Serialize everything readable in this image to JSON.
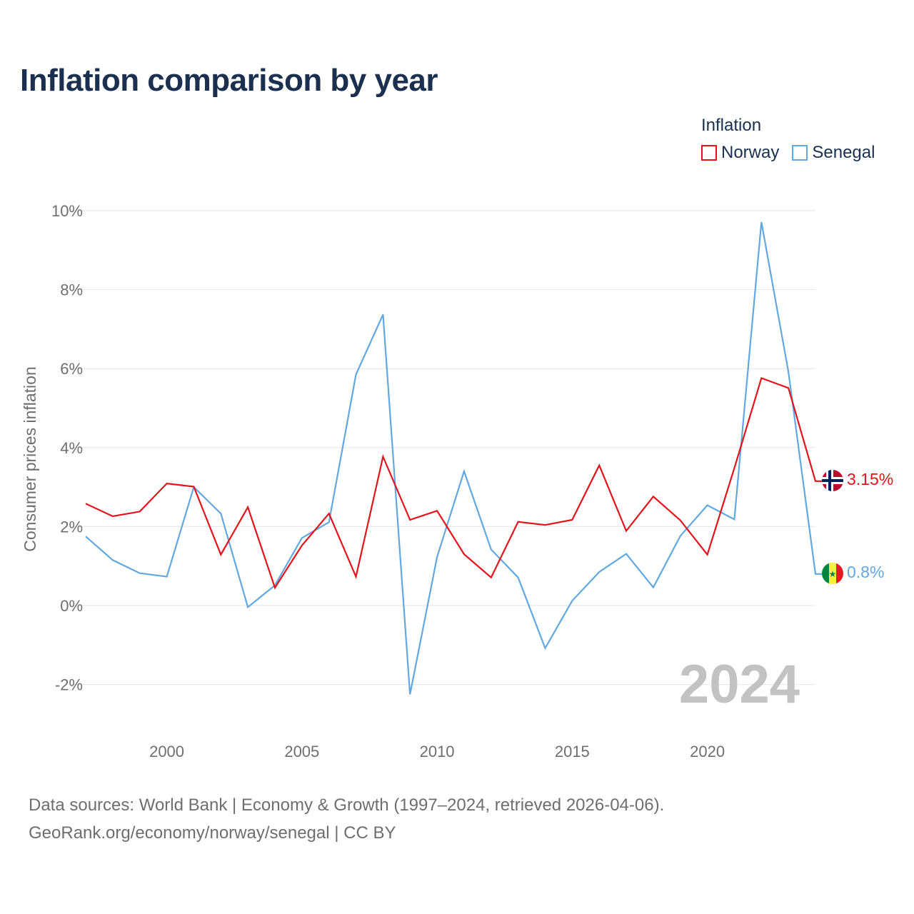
{
  "title": "Inflation comparison by year",
  "legend": {
    "title": "Inflation"
  },
  "footer": {
    "line1": "Data sources: World Bank | Economy & Growth (1997–2024, retrieved 2026-04-06).",
    "line2": "GeoRank.org/economy/norway/senegal | CC BY"
  },
  "chart_data": {
    "type": "line",
    "title": "Inflation comparison by year",
    "xlabel": "",
    "ylabel": "Consumer prices inflation",
    "x": [
      1997,
      1998,
      1999,
      2000,
      2001,
      2002,
      2003,
      2004,
      2005,
      2006,
      2007,
      2008,
      2009,
      2010,
      2011,
      2012,
      2013,
      2014,
      2015,
      2016,
      2017,
      2018,
      2019,
      2020,
      2021,
      2022,
      2023,
      2024
    ],
    "xlim": [
      1997,
      2024
    ],
    "ylim": [
      -2.5,
      10
    ],
    "x_ticks": [
      2000,
      2005,
      2010,
      2015,
      2020
    ],
    "x_tick_labels": [
      "2000",
      "2005",
      "2010",
      "2015",
      "2020"
    ],
    "y_ticks": [
      -2,
      0,
      2,
      4,
      6,
      8,
      10
    ],
    "y_tick_labels": [
      "-2%",
      "0%",
      "2%",
      "4%",
      "6%",
      "8%",
      "10%"
    ],
    "grid": true,
    "legend_position": "top-right",
    "watermark": "2024",
    "series": [
      {
        "name": "Norway",
        "color": "#e3131b",
        "end_label": "3.15%",
        "flag": "norway-flag-icon",
        "values": [
          2.58,
          2.26,
          2.38,
          3.09,
          3.01,
          1.29,
          2.49,
          0.45,
          1.52,
          2.33,
          0.73,
          3.77,
          2.17,
          2.4,
          1.3,
          0.71,
          2.12,
          2.04,
          2.17,
          3.55,
          1.89,
          2.76,
          2.16,
          1.29,
          3.48,
          5.76,
          5.51,
          3.15
        ]
      },
      {
        "name": "Senegal",
        "color": "#62a8e0",
        "end_label": "0.8%",
        "flag": "senegal-flag-icon",
        "values": [
          1.75,
          1.15,
          0.82,
          0.73,
          3.0,
          2.33,
          -0.04,
          0.51,
          1.71,
          2.11,
          5.85,
          7.37,
          -2.25,
          1.23,
          3.4,
          1.42,
          0.71,
          -1.08,
          0.12,
          0.85,
          1.31,
          0.46,
          1.76,
          2.54,
          2.18,
          9.71,
          5.92,
          0.8
        ]
      }
    ]
  }
}
